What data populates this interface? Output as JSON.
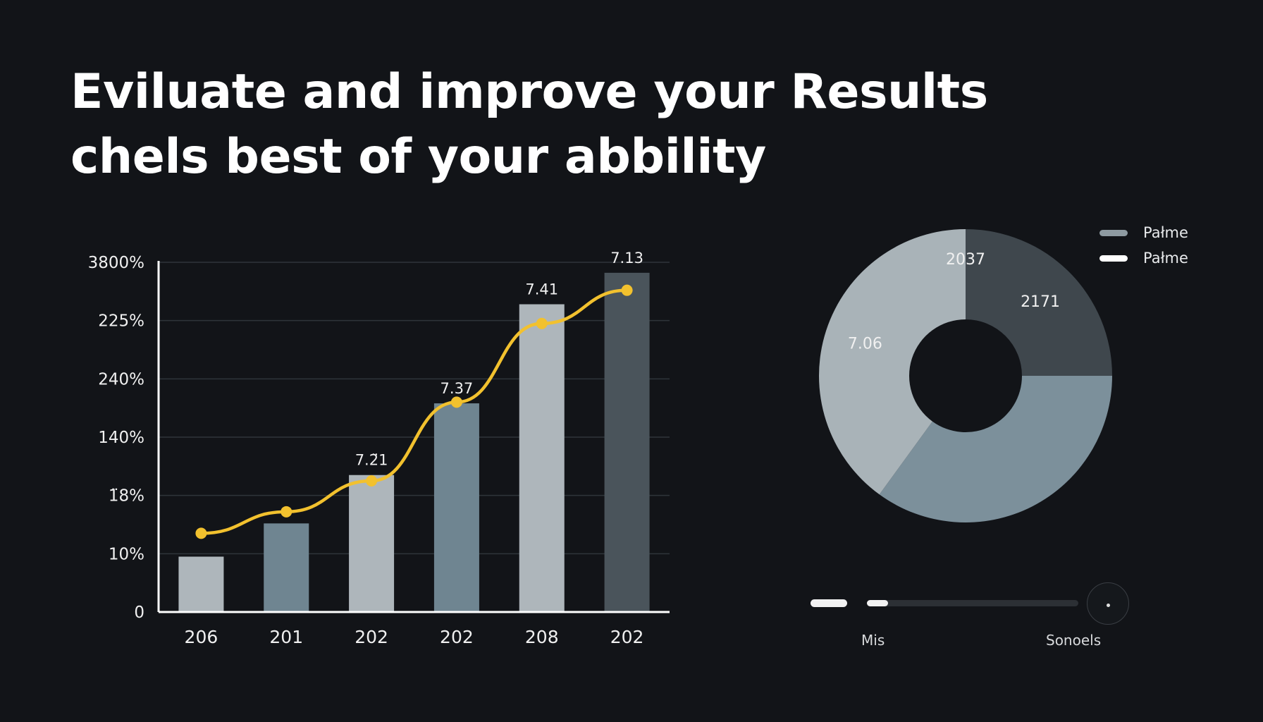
{
  "headline": {
    "line1": "Eviluate and improve your Results",
    "line2": "chels best of your abbility"
  },
  "colors": {
    "background": "#121418",
    "gridline": "#2f343a",
    "axis": "#ffffff",
    "line_series": "#f2c12e",
    "bar_light": "#aeb6bb",
    "bar_mid": "#6f8591",
    "bar_dark": "#4a545b",
    "donut_light": "#a9b3b8",
    "donut_mid": "#7c909b",
    "donut_dark": "#3f474d"
  },
  "chart_data": [
    {
      "type": "bar",
      "categories": [
        "206",
        "201",
        "202",
        "202",
        "208",
        "202"
      ],
      "y_tick_labels": [
        "0",
        "10%",
        "1̈8%",
        "140%",
        "240%",
        "225%",
        "3800%"
      ],
      "ylim": [
        0,
        6
      ],
      "values": [
        0.95,
        1.52,
        2.35,
        3.58,
        5.28,
        5.82
      ],
      "bar_colors": [
        "#aeb6bb",
        "#6f8591",
        "#aeb6bb",
        "#6f8591",
        "#aeb6bb",
        "#4a545b"
      ],
      "data_labels": [
        "",
        "",
        "7.2̈1",
        "7.37",
        "7.41",
        "7.13"
      ],
      "line_series": {
        "values": [
          1.35,
          1.72,
          2.25,
          3.6,
          4.95,
          5.52
        ]
      },
      "title": "",
      "xlabel": "",
      "ylabel": "",
      "grid": true
    },
    {
      "type": "pie",
      "style": "donut",
      "slices": [
        {
          "label": "2037",
          "value": 25,
          "color": "#3f474d",
          "label_text": "2171"
        },
        {
          "label": "",
          "value": 35,
          "color": "#7c909b",
          "label_text": ""
        },
        {
          "label": "",
          "value": 40,
          "color": "#a9b3b8",
          "label_text": "7.06"
        }
      ],
      "top_label": "2037",
      "legend": {
        "placement": "top-right",
        "items": [
          {
            "label": "Pałme",
            "color": "#8e9aa1"
          },
          {
            "label": "Pałme",
            "color": "#ffffff"
          }
        ]
      }
    }
  ],
  "slider": {
    "value": 0.1,
    "left_label": "Mis",
    "right_label": "Sonoels"
  }
}
